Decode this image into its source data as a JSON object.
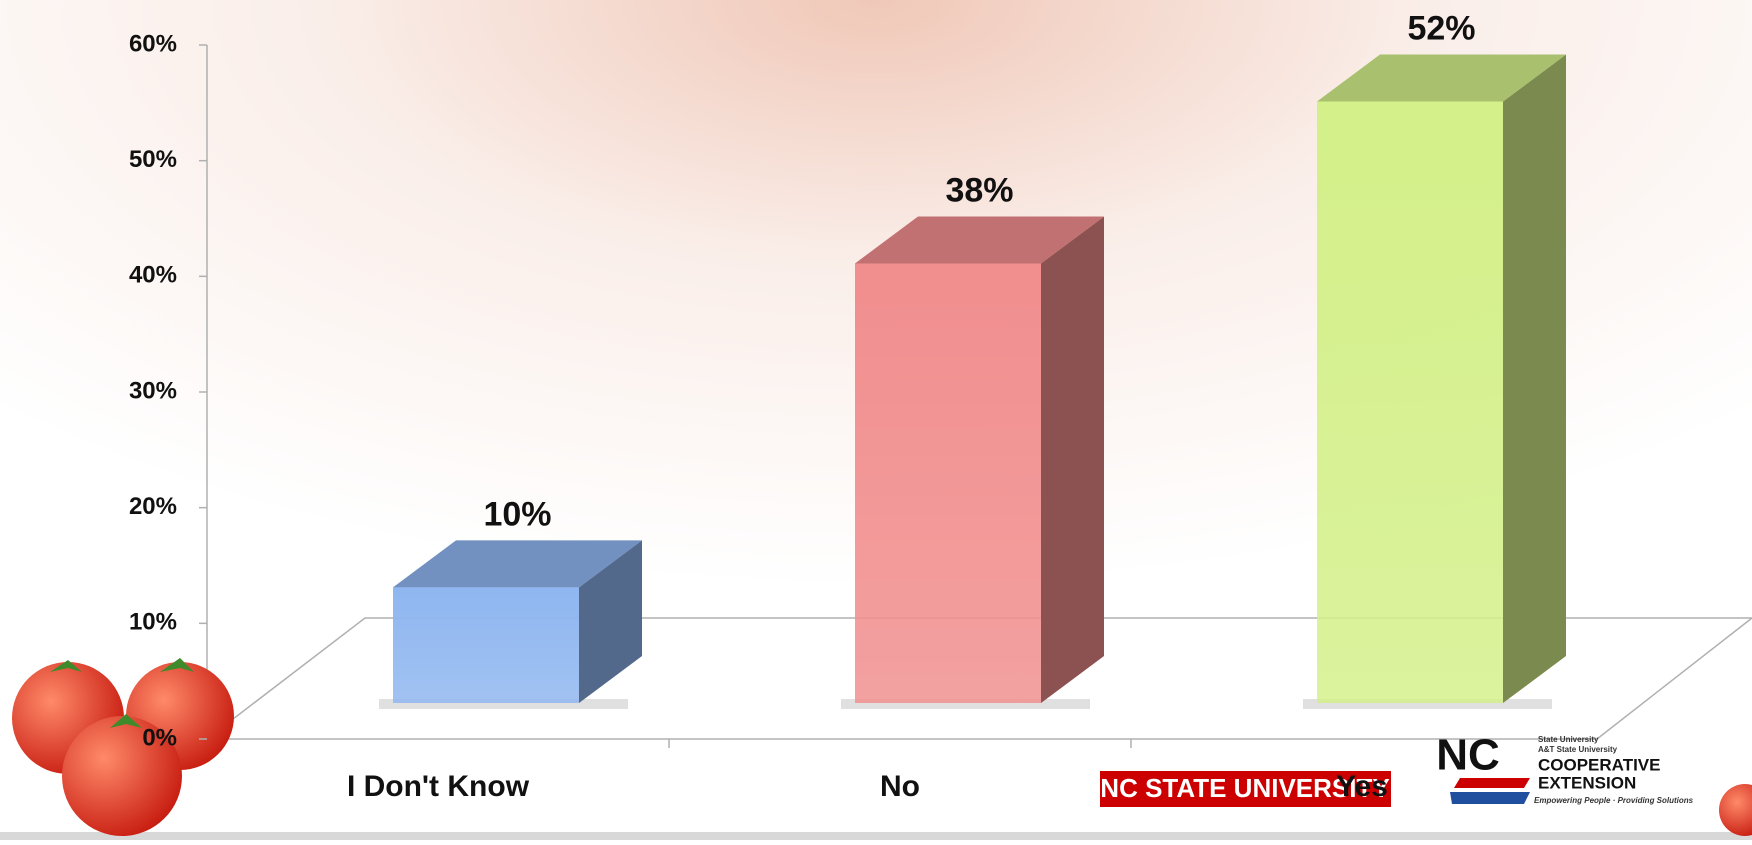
{
  "chart_data": {
    "type": "bar3d",
    "categories": [
      "I Don't Know",
      "No",
      "Yes"
    ],
    "values": [
      10,
      38,
      52
    ],
    "value_labels": [
      "10%",
      "38%",
      "52%"
    ],
    "colors": [
      "#8fb6f0",
      "#f28e8e",
      "#d4f08a"
    ],
    "ylim": [
      0,
      60
    ],
    "yticks": [
      {
        "value": 0,
        "label": "0%"
      },
      {
        "value": 10,
        "label": "10%"
      },
      {
        "value": 20,
        "label": "20%"
      },
      {
        "value": 30,
        "label": "30%"
      },
      {
        "value": 40,
        "label": "40%"
      },
      {
        "value": 50,
        "label": "50%"
      },
      {
        "value": 60,
        "label": "60%"
      }
    ]
  },
  "logos": {
    "ncstate": "NC STATE UNIVERSITY",
    "nc": "NC",
    "coop1": "COOPERATIVE",
    "coop2": "EXTENSION",
    "small1": "State University",
    "small2": "A&T State University",
    "tagline": "Empowering People · Providing Solutions"
  }
}
